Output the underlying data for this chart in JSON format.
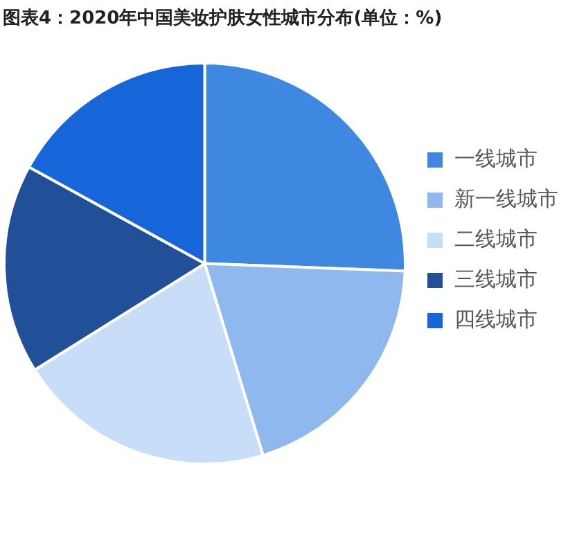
{
  "chart_data": {
    "type": "pie",
    "title": "图表4：2020年中国美妆护肤女性城市分布(单位：%)",
    "categories": [
      "一线城市",
      "新一线城市",
      "二线城市",
      "三线城市",
      "四线城市"
    ],
    "values": [
      25.6,
      19.7,
      20.8,
      16.9,
      17.0
    ],
    "colors": [
      "#3f88e2",
      "#8fb9ee",
      "#c8ddf7",
      "#214f98",
      "#1766d9"
    ],
    "legend": "right"
  }
}
